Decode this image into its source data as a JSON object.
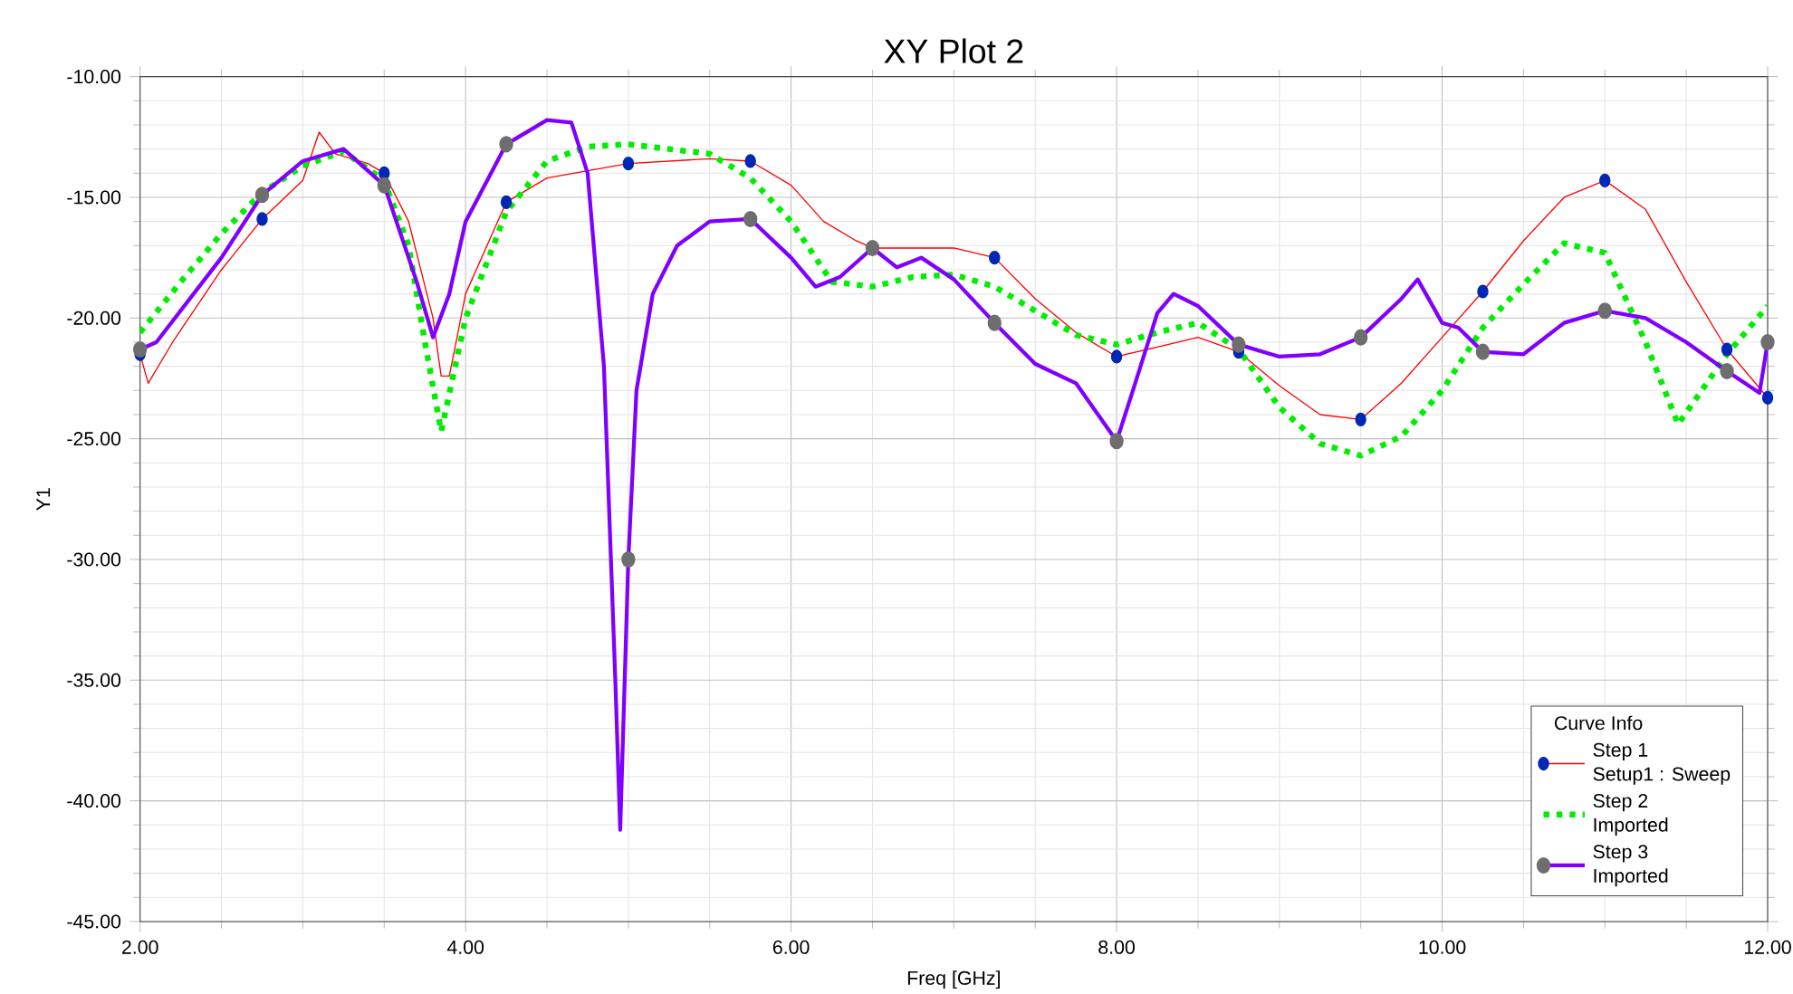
{
  "chart_data": {
    "type": "line",
    "title": "XY Plot 2",
    "xlabel": "Freq [GHz]",
    "ylabel": "Y1",
    "legend_title": "Curve Info",
    "annotations": [
      "Setup1 : Sweep",
      "Imported",
      "Imported"
    ],
    "xlim": [
      2,
      12
    ],
    "ylim": [
      -45,
      -10
    ],
    "xticks": [
      {
        "value": 2,
        "label": "2.00"
      },
      {
        "value": 4,
        "label": "4.00"
      },
      {
        "value": 6,
        "label": "6.00"
      },
      {
        "value": 8,
        "label": "8.00"
      },
      {
        "value": 10,
        "label": "10.00"
      },
      {
        "value": 12,
        "label": "12.00"
      }
    ],
    "yticks": [
      {
        "value": -45,
        "label": "-45.00"
      },
      {
        "value": -40,
        "label": "-40.00"
      },
      {
        "value": -35,
        "label": "-35.00"
      },
      {
        "value": -30,
        "label": "-30.00"
      },
      {
        "value": -25,
        "label": "-25.00"
      },
      {
        "value": -20,
        "label": "-20.00"
      },
      {
        "value": -15,
        "label": "-15.00"
      },
      {
        "value": -10,
        "label": "-10.00"
      }
    ],
    "grid": true,
    "legend": "bottom right",
    "series": [
      {
        "name": "Step 1",
        "color": "#ff0000",
        "line_style": "solid",
        "x": [
          2.0,
          2.05,
          2.2,
          2.5,
          2.75,
          3.0,
          3.1,
          3.2,
          3.4,
          3.5,
          3.65,
          3.8,
          3.85,
          3.9,
          4.0,
          4.25,
          4.5,
          5.0,
          5.5,
          5.75,
          6.0,
          6.2,
          6.4,
          6.5,
          7.0,
          7.25,
          7.5,
          7.75,
          8.0,
          8.25,
          8.5,
          8.75,
          9.0,
          9.25,
          9.5,
          9.75,
          10.0,
          10.25,
          10.5,
          10.75,
          11.0,
          11.25,
          11.5,
          11.75,
          12.0
        ],
        "values": [
          -21.5,
          -22.7,
          -21.0,
          -18.0,
          -15.9,
          -14.3,
          -12.3,
          -13.2,
          -13.6,
          -14.0,
          -16.0,
          -20.0,
          -22.4,
          -22.4,
          -19.0,
          -15.2,
          -14.2,
          -13.6,
          -13.4,
          -13.5,
          -14.5,
          -16.0,
          -16.8,
          -17.1,
          -17.1,
          -17.5,
          -19.2,
          -20.6,
          -21.6,
          -21.2,
          -20.8,
          -21.4,
          -22.8,
          -24.0,
          -24.2,
          -22.7,
          -20.8,
          -18.9,
          -16.8,
          -15.0,
          -14.3,
          -15.5,
          -18.5,
          -21.3,
          -23.3
        ]
      },
      {
        "name": "Step 2",
        "color": "#00ee00",
        "marker": "none",
        "line_style": "dotted",
        "x": [
          2.0,
          2.25,
          2.5,
          2.75,
          3.0,
          3.25,
          3.5,
          3.65,
          3.75,
          3.85,
          4.0,
          4.25,
          4.5,
          4.75,
          5.0,
          5.5,
          5.75,
          6.0,
          6.25,
          6.5,
          6.75,
          7.0,
          7.25,
          7.5,
          7.75,
          8.0,
          8.25,
          8.5,
          8.75,
          9.0,
          9.25,
          9.5,
          9.75,
          10.0,
          10.25,
          10.5,
          10.75,
          11.0,
          11.25,
          11.45,
          11.75,
          12.0
        ],
        "values": [
          -20.6,
          -18.5,
          -16.5,
          -14.8,
          -13.7,
          -13.1,
          -14.3,
          -17.0,
          -21.0,
          -24.7,
          -20.0,
          -15.6,
          -13.5,
          -12.9,
          -12.8,
          -13.2,
          -14.2,
          -16.0,
          -18.5,
          -18.7,
          -18.3,
          -18.2,
          -18.7,
          -19.7,
          -20.7,
          -21.1,
          -20.6,
          -20.2,
          -21.3,
          -23.7,
          -25.2,
          -25.7,
          -24.9,
          -23.0,
          -20.4,
          -18.6,
          -16.9,
          -17.3,
          -21.0,
          -24.4,
          -21.5,
          -19.5
        ]
      },
      {
        "name": "Step 3",
        "color": "#8000ff",
        "line_style": "solid",
        "x": [
          2.0,
          2.1,
          2.5,
          2.75,
          3.0,
          3.25,
          3.5,
          3.7,
          3.8,
          3.9,
          4.0,
          4.25,
          4.5,
          4.65,
          4.75,
          4.85,
          4.92,
          4.95,
          5.0,
          5.05,
          5.15,
          5.3,
          5.5,
          5.75,
          6.0,
          6.15,
          6.3,
          6.5,
          6.65,
          6.8,
          7.0,
          7.25,
          7.5,
          7.75,
          8.0,
          8.1,
          8.25,
          8.35,
          8.5,
          8.75,
          9.0,
          9.25,
          9.5,
          9.75,
          9.85,
          10.0,
          10.1,
          10.25,
          10.5,
          10.75,
          11.0,
          11.25,
          11.5,
          11.75,
          11.95,
          12.0
        ],
        "values": [
          -21.3,
          -21.0,
          -17.5,
          -14.9,
          -13.5,
          -13.0,
          -14.5,
          -18.5,
          -20.8,
          -19.0,
          -16.0,
          -12.8,
          -11.8,
          -11.9,
          -14.0,
          -22.0,
          -35.0,
          -41.2,
          -30.0,
          -23.0,
          -19.0,
          -17.0,
          -16.0,
          -15.9,
          -17.5,
          -18.7,
          -18.3,
          -17.1,
          -17.9,
          -17.5,
          -18.4,
          -20.2,
          -21.9,
          -22.7,
          -25.1,
          -23.0,
          -19.8,
          -19.0,
          -19.5,
          -21.1,
          -21.6,
          -21.5,
          -20.8,
          -19.2,
          -18.4,
          -20.2,
          -20.4,
          -21.4,
          -21.5,
          -20.2,
          -19.7,
          -20.0,
          -21.0,
          -22.2,
          -23.1,
          -21.0
        ]
      }
    ]
  }
}
